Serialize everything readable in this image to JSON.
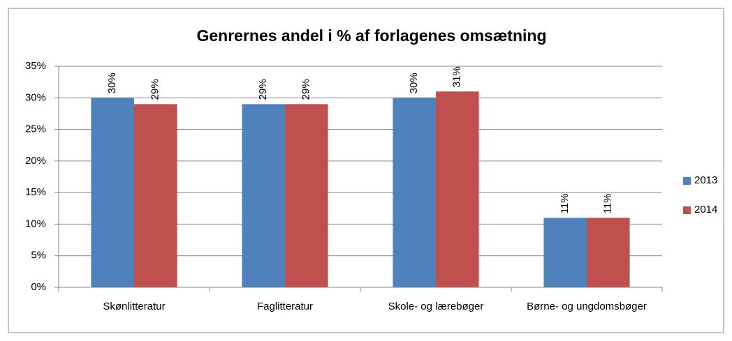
{
  "chart_data": {
    "type": "bar",
    "title": "Genrernes andel i % af forlagenes omsætning",
    "categories": [
      "Skønlitteratur",
      "Faglitteratur",
      "Skole- og lærebøger",
      "Børne- og ungdomsbøger"
    ],
    "series": [
      {
        "name": "2013",
        "color": "#4f81bd",
        "values": [
          30,
          29,
          30,
          11
        ],
        "value_labels": [
          "30%",
          "29%",
          "30%",
          "11%"
        ]
      },
      {
        "name": "2014",
        "color": "#c0504d",
        "values": [
          29,
          29,
          31,
          11
        ],
        "value_labels": [
          "29%",
          "29%",
          "31%",
          "11%"
        ]
      }
    ],
    "ylim": [
      0,
      35
    ],
    "yticks": [
      {
        "value": 0,
        "label": "0%"
      },
      {
        "value": 5,
        "label": "5%"
      },
      {
        "value": 10,
        "label": "10%"
      },
      {
        "value": 15,
        "label": "15%"
      },
      {
        "value": 20,
        "label": "20%"
      },
      {
        "value": 25,
        "label": "25%"
      },
      {
        "value": 30,
        "label": "30%"
      },
      {
        "value": 35,
        "label": "35%"
      }
    ],
    "grid": true,
    "legend": "right"
  }
}
